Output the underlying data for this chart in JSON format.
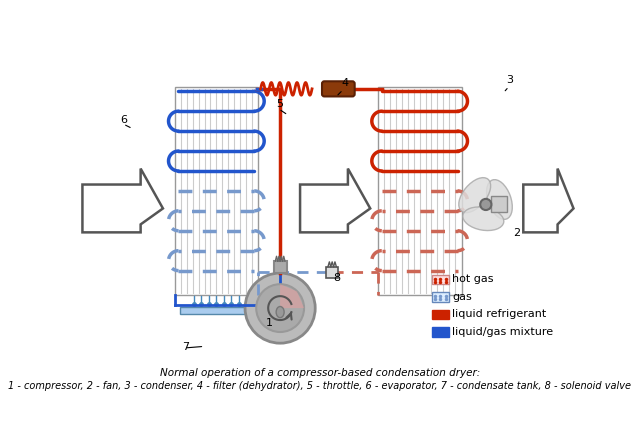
{
  "title1": "Normal operation of a compressor-based condensation dryer:",
  "title2": "1 - compressor, 2 - fan, 3 - condenser, 4 - filter (dehydrator), 5 - throttle, 6 - evaporator, 7 - condensate tank, 8 - solenoid valve",
  "bg_color": "#ffffff",
  "colors": {
    "coil_blue": "#2255cc",
    "coil_red": "#cc2200",
    "coil_blue_dot": "#7799cc",
    "coil_red_dot": "#cc6655",
    "pipe_gray": "#888888",
    "water_blue": "#aaccee",
    "fan_gray": "#bbbbbb"
  },
  "legend": {
    "hot_gas": "hot gas",
    "gas": "gas",
    "liquid_refrigerant": "liquid refrigerant",
    "liquid_gas_mixture": "liquid/gas mixture"
  }
}
